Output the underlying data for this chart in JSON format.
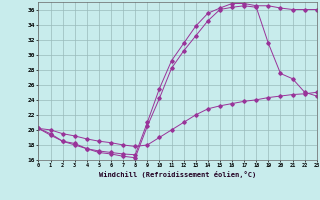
{
  "xlabel": "Windchill (Refroidissement éolien,°C)",
  "bg_color": "#c8ecec",
  "grid_color": "#99bbbb",
  "line_color": "#993399",
  "xmin": 0,
  "xmax": 23,
  "ymin": 16,
  "ymax": 37,
  "yticks": [
    16,
    18,
    20,
    22,
    24,
    26,
    28,
    30,
    32,
    34,
    36
  ],
  "line1_x": [
    0,
    1,
    2,
    3,
    4,
    5,
    6,
    7,
    8,
    9,
    10,
    11,
    12,
    13,
    14,
    15,
    16,
    17,
    18,
    19,
    20,
    21,
    22,
    23
  ],
  "line1_y": [
    20.2,
    19.5,
    18.5,
    18.0,
    17.5,
    17.0,
    16.8,
    16.5,
    16.3,
    20.5,
    24.2,
    28.2,
    30.5,
    32.5,
    34.5,
    36.0,
    36.3,
    36.5,
    36.3,
    31.5,
    27.5,
    26.8,
    25.0,
    24.5
  ],
  "line2_x": [
    0,
    1,
    2,
    3,
    4,
    5,
    6,
    7,
    8,
    9,
    10,
    11,
    12,
    13,
    14,
    15,
    16,
    17,
    18,
    19,
    20,
    21,
    22,
    23
  ],
  "line2_y": [
    20.2,
    19.3,
    18.5,
    18.2,
    17.5,
    17.2,
    17.0,
    16.8,
    16.7,
    21.0,
    25.5,
    29.2,
    31.5,
    33.8,
    35.5,
    36.2,
    36.8,
    36.8,
    36.5,
    36.5,
    36.2,
    36.0,
    36.0,
    36.0
  ],
  "line3_x": [
    0,
    1,
    2,
    3,
    4,
    5,
    6,
    7,
    8,
    9,
    10,
    11,
    12,
    13,
    14,
    15,
    16,
    17,
    18,
    19,
    20,
    21,
    22,
    23
  ],
  "line3_y": [
    20.2,
    20.0,
    19.5,
    19.2,
    18.8,
    18.5,
    18.3,
    18.0,
    17.8,
    18.0,
    19.0,
    20.0,
    21.0,
    22.0,
    22.8,
    23.2,
    23.5,
    23.8,
    24.0,
    24.3,
    24.5,
    24.7,
    24.8,
    25.0
  ]
}
